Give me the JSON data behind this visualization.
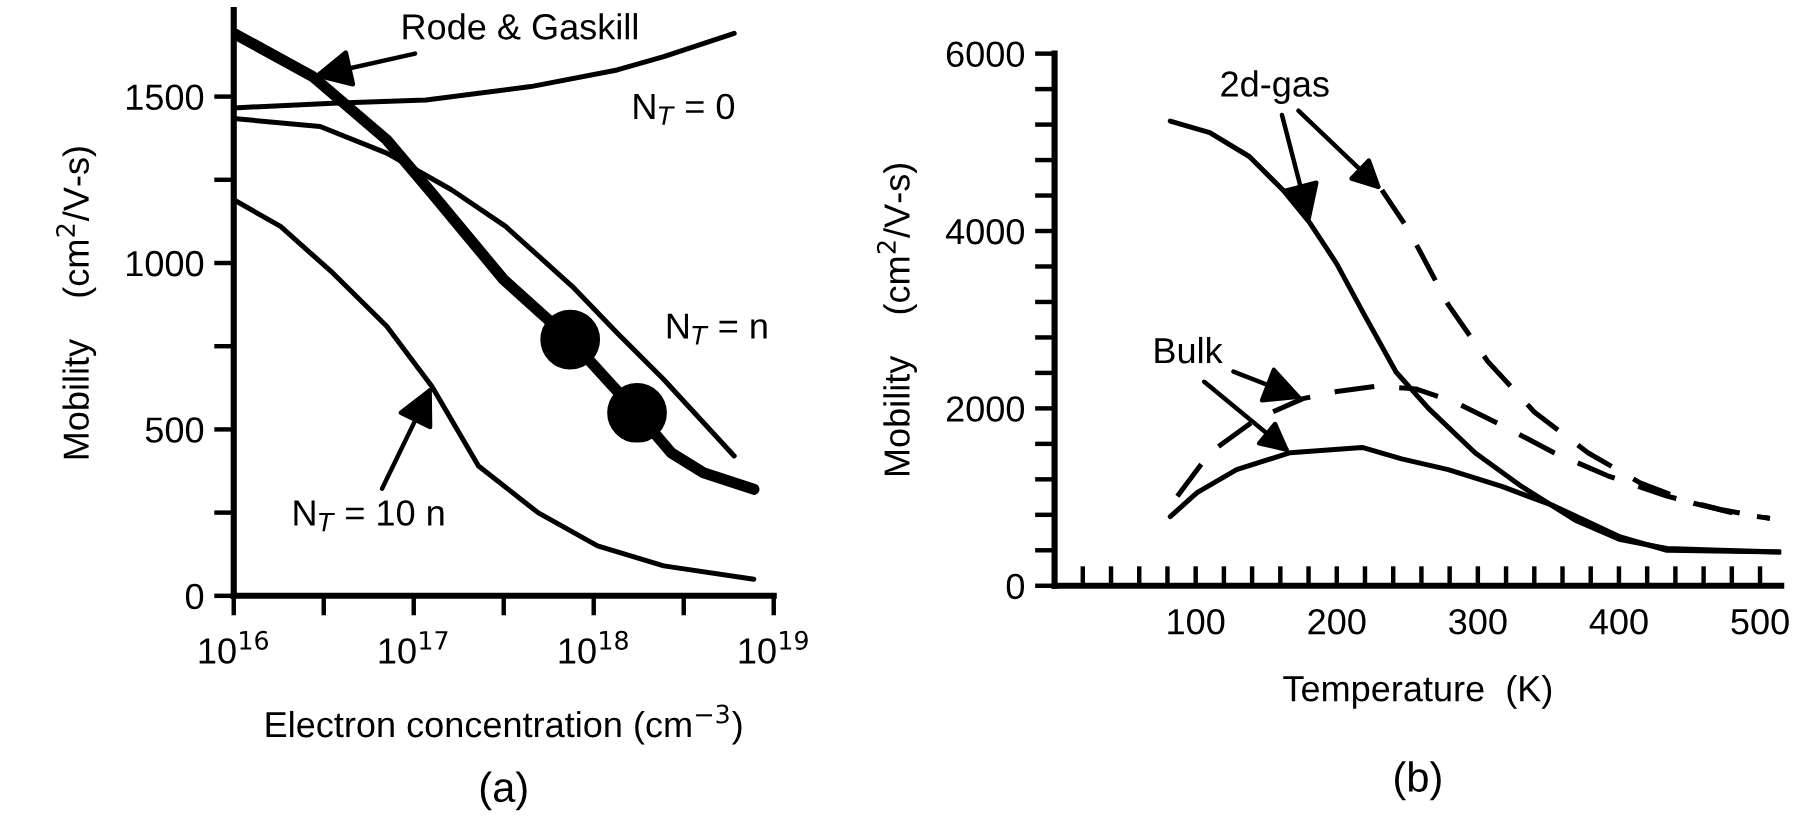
{
  "chart_data": [
    {
      "type": "line",
      "xlabel": "Electron concentration (cm$^{−3}$)",
      "ylabel": "Mobility    (cm$^{2}$/V-s)",
      "log": "x",
      "xlim": [
        1e+16,
        1e+19
      ],
      "ylim": [
        0,
        1760
      ],
      "xticks": [
        {
          "value": 1e+16,
          "label": "10$^{16}$"
        },
        {
          "value": 3.162e+16,
          "label": null
        },
        {
          "value": 1e+17,
          "label": "10$^{17}$"
        },
        {
          "value": 3.162e+17,
          "label": null
        },
        {
          "value": 1e+18,
          "label": "10$^{18}$"
        },
        {
          "value": 3.162e+18,
          "label": null
        },
        {
          "value": 1e+19,
          "label": "10$^{19}$"
        }
      ],
      "yticks": [
        0,
        {
          "value": 250,
          "label": null
        },
        500,
        {
          "value": 750,
          "label": null
        },
        1000,
        {
          "value": 1250,
          "label": null
        },
        1500
      ],
      "grid": false,
      "legend": false,
      "marker": "none",
      "series": [
        {
          "color": "#000000",
          "x": [
            1e+16,
            2.75e+16,
            7.08e+16,
            1.26e+17,
            3.16e+17,
            7.41e+17,
            1.74e+18,
            2.69e+18,
            4.07e+18,
            7.76e+18
          ],
          "values": [
            1690,
            1560,
            1370,
            1210,
            950,
            770,
            550,
            430,
            370,
            320
          ]
        },
        {
          "name": "N$_{T}$ = 0",
          "color": "#000000",
          "x": [
            1e+16,
            3.55e+16,
            1.17e+17,
            4.47e+17,
            1.35e+18,
            2.45e+18,
            6.03e+18
          ],
          "values": [
            1466,
            1480,
            1490,
            1530,
            1580,
            1620,
            1690
          ]
        },
        {
          "name": "N$_{T}$ = n",
          "color": "#000000",
          "x": [
            1e+16,
            3.02e+16,
            7.08e+16,
            1.62e+17,
            3.24e+17,
            7.59e+17,
            1.35e+18,
            2.45e+18,
            6.03e+18
          ],
          "values": [
            1434,
            1410,
            1330,
            1220,
            1110,
            930,
            790,
            650,
            420
          ]
        },
        {
          "name": "N$_{T}$ = 10 n",
          "color": "#000000",
          "x": [
            1e+16,
            1.82e+16,
            3.55e+16,
            7.08e+16,
            1.26e+17,
            2.29e+17,
            4.9e+17,
            1.05e+18,
            2.45e+18,
            7.76e+18
          ],
          "values": [
            1190,
            1110,
            970,
            810,
            630,
            390,
            250,
            150,
            90,
            50
          ]
        },
        {
          "type": "scatter",
          "marker": "circle",
          "color": "#000000",
          "x": [
            7.4e+17,
            1.74e+18
          ],
          "values": [
            770,
            550
          ]
        }
      ],
      "annotations": [
        {
          "text": "Rode & Gaskill",
          "x": 2.75e+16,
          "y": 1560
        },
        "(a)"
      ]
    },
    {
      "type": "line",
      "xlabel": "Temperature  (K)",
      "ylabel": "Mobility    (cm$^{2}$/V-s)",
      "xlim": [
        0,
        515
      ],
      "ylim": [
        0,
        6000
      ],
      "xticks": [
        {
          "value": 20,
          "label": null
        },
        {
          "value": 40,
          "label": null
        },
        {
          "value": 60,
          "label": null
        },
        {
          "value": 80,
          "label": null
        },
        100,
        {
          "value": 120,
          "label": null
        },
        {
          "value": 140,
          "label": null
        },
        {
          "value": 160,
          "label": null
        },
        {
          "value": 180,
          "label": null
        },
        200,
        {
          "value": 220,
          "label": null
        },
        {
          "value": 240,
          "label": null
        },
        {
          "value": 260,
          "label": null
        },
        {
          "value": 280,
          "label": null
        },
        300,
        {
          "value": 320,
          "label": null
        },
        {
          "value": 340,
          "label": null
        },
        {
          "value": 360,
          "label": null
        },
        {
          "value": 380,
          "label": null
        },
        400,
        {
          "value": 420,
          "label": null
        },
        {
          "value": 440,
          "label": null
        },
        {
          "value": 460,
          "label": null
        },
        {
          "value": 480,
          "label": null
        },
        500
      ],
      "yticks": [
        0,
        {
          "value": 400,
          "label": null
        },
        {
          "value": 800,
          "label": null
        },
        {
          "value": 1200,
          "label": null
        },
        {
          "value": 1600,
          "label": null
        },
        2000,
        {
          "value": 2400,
          "label": null
        },
        {
          "value": 2800,
          "label": null
        },
        {
          "value": 3200,
          "label": null
        },
        {
          "value": 3600,
          "label": null
        },
        4000,
        {
          "value": 4400,
          "label": null
        },
        {
          "value": 4800,
          "label": null
        },
        {
          "value": 5200,
          "label": null
        },
        {
          "value": 5600,
          "label": null
        },
        6000
      ],
      "grid": false,
      "legend": false,
      "marker": "none",
      "series": [
        {
          "color": "#000000",
          "line_style": "solid",
          "x": [
            82,
            110,
            138,
            162,
            181,
            200,
            218,
            242,
            265,
            298,
            331,
            369,
            401,
            434,
            472,
            514
          ],
          "values": [
            5240,
            5110,
            4840,
            4460,
            4090,
            3630,
            3100,
            2410,
            2000,
            1500,
            1120,
            740,
            520,
            420,
            400,
            380
          ]
        },
        {
          "color": "#000000",
          "line_style": "solid",
          "x": [
            82,
            101,
            129,
            167,
            218,
            246,
            279,
            317,
            354,
            401,
            434,
            514
          ],
          "values": [
            780,
            1050,
            1310,
            1500,
            1560,
            1430,
            1310,
            1120,
            900,
            550,
            400,
            380
          ]
        },
        {
          "color": "#000000",
          "line_style": "dashed",
          "x": [
            232,
            251,
            279,
            307,
            340,
            378,
            415,
            453,
            481,
            507
          ],
          "values": [
            4460,
            4010,
            3170,
            2530,
            1960,
            1500,
            1160,
            930,
            820,
            760
          ]
        },
        {
          "color": "#000000",
          "line_style": "dashed",
          "x": [
            87,
            110,
            143,
            176,
            200,
            228,
            256,
            284,
            317,
            354,
            392,
            434,
            472,
            507
          ],
          "values": [
            1010,
            1500,
            1880,
            2110,
            2190,
            2250,
            2220,
            2070,
            1810,
            1500,
            1240,
            1010,
            860,
            760
          ]
        }
      ],
      "annotations": [
        {
          "text": "2d-gas",
          "x": 181,
          "y": 4090
        },
        {
          "text": "Bulk",
          "x": 176,
          "y": 2110
        },
        "(b)"
      ]
    }
  ]
}
